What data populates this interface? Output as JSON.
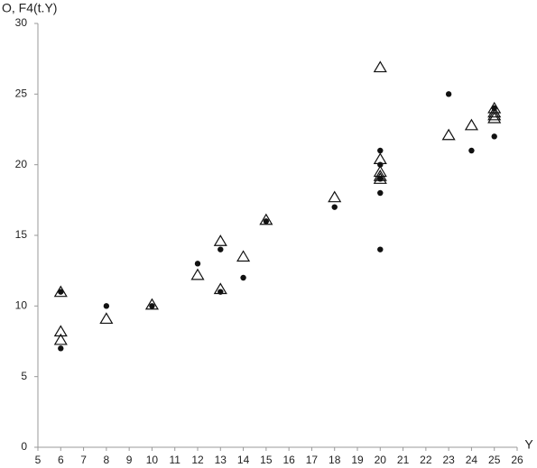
{
  "chart_data": {
    "type": "scatter",
    "y_label": "O, F4(t.Y)",
    "x_label": "Y",
    "xlim": [
      5,
      26
    ],
    "xticks": [
      5,
      6,
      7,
      8,
      9,
      10,
      11,
      12,
      13,
      14,
      15,
      16,
      17,
      18,
      19,
      20,
      21,
      22,
      23,
      24,
      25,
      26
    ],
    "ylim": [
      0,
      30
    ],
    "yticks": [
      0,
      5,
      10,
      15,
      20,
      25,
      30
    ],
    "grid": false,
    "series": [
      {
        "marker": "circle",
        "color": "#111111",
        "x": [
          6,
          6,
          8,
          10,
          12,
          13,
          13,
          14,
          15,
          18,
          20,
          20,
          20,
          20,
          20,
          23,
          24,
          25,
          25
        ],
        "values": [
          11,
          7,
          10,
          10,
          13,
          14,
          11,
          12,
          16,
          17,
          21,
          20,
          19,
          18,
          14,
          25,
          21,
          22,
          24
        ]
      },
      {
        "marker": "triangle",
        "color": "#111111",
        "x": [
          6,
          6,
          6,
          8,
          10,
          12,
          13,
          13,
          14,
          15,
          18,
          20,
          20,
          20,
          20,
          20,
          23,
          24,
          25,
          25,
          25,
          25
        ],
        "values": [
          11,
          8.2,
          7.6,
          9.1,
          10.1,
          12.2,
          14.6,
          11.2,
          13.5,
          16.1,
          17.7,
          26.9,
          20.4,
          19.5,
          19.2,
          19,
          22.1,
          22.8,
          24,
          23.7,
          23.5,
          23.3
        ]
      }
    ]
  }
}
